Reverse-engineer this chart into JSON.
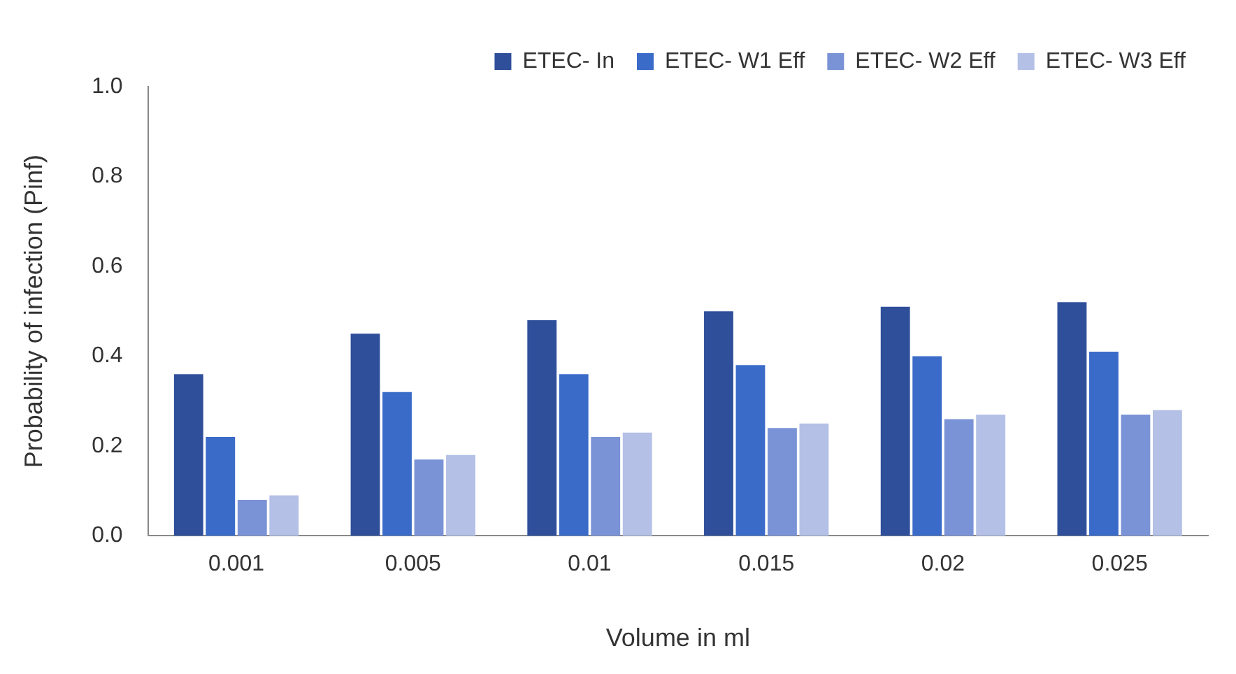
{
  "chart_data": {
    "type": "bar",
    "xlabel": "Volume in ml",
    "ylabel": "Probability of infection (Pinf)",
    "categories": [
      "0.001",
      "0.005",
      "0.01",
      "0.015",
      "0.02",
      "0.025"
    ],
    "series": [
      {
        "name": "ETEC- In",
        "color": "#2f4f9a",
        "values": [
          0.36,
          0.45,
          0.48,
          0.5,
          0.51,
          0.52
        ]
      },
      {
        "name": "ETEC- W1 Eff",
        "color": "#3a6bc8",
        "values": [
          0.22,
          0.32,
          0.36,
          0.38,
          0.4,
          0.41
        ]
      },
      {
        "name": "ETEC- W2 Eff",
        "color": "#7a93d6",
        "values": [
          0.08,
          0.17,
          0.22,
          0.24,
          0.26,
          0.27
        ]
      },
      {
        "name": "ETEC- W3 Eff",
        "color": "#b4c0e6",
        "values": [
          0.09,
          0.18,
          0.23,
          0.25,
          0.27,
          0.28
        ]
      }
    ],
    "ylim": [
      0,
      1
    ],
    "yticks": [
      {
        "value": 0,
        "label": "0.0"
      },
      {
        "value": 0.2,
        "label": "0.2"
      },
      {
        "value": 0.4,
        "label": "0.4"
      },
      {
        "value": 0.6,
        "label": "0.6"
      },
      {
        "value": 0.8,
        "label": "0.8"
      },
      {
        "value": 1,
        "label": "1.0"
      }
    ],
    "grid": false,
    "legend": "top right"
  }
}
